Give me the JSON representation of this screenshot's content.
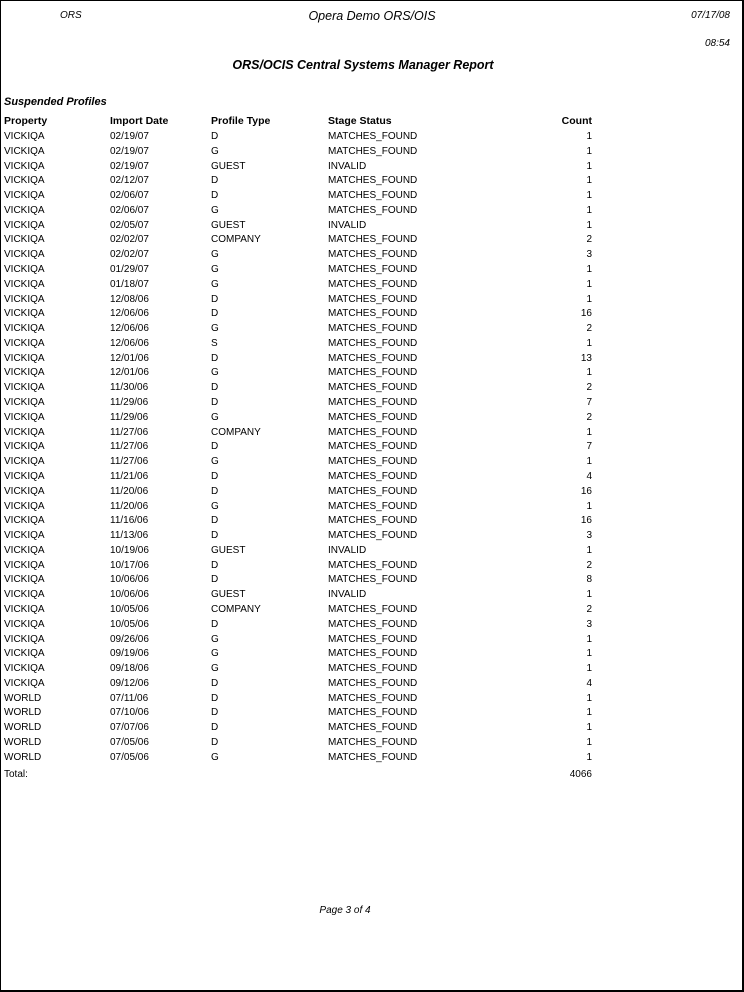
{
  "header": {
    "left": "ORS",
    "center": "Opera Demo ORS/OIS",
    "date": "07/17/08",
    "time": "08:54"
  },
  "report_title": "ORS/OCIS Central Systems Manager Report",
  "section_title": "Suspended Profiles",
  "table": {
    "columns": [
      "Property",
      "Import Date",
      "Profile Type",
      "Stage Status",
      "Count"
    ],
    "rows": [
      [
        "VICKIQA",
        "02/19/07",
        "D",
        "MATCHES_FOUND",
        "1"
      ],
      [
        "VICKIQA",
        "02/19/07",
        "G",
        "MATCHES_FOUND",
        "1"
      ],
      [
        "VICKIQA",
        "02/19/07",
        "GUEST",
        "INVALID",
        "1"
      ],
      [
        "VICKIQA",
        "02/12/07",
        "D",
        "MATCHES_FOUND",
        "1"
      ],
      [
        "VICKIQA",
        "02/06/07",
        "D",
        "MATCHES_FOUND",
        "1"
      ],
      [
        "VICKIQA",
        "02/06/07",
        "G",
        "MATCHES_FOUND",
        "1"
      ],
      [
        "VICKIQA",
        "02/05/07",
        "GUEST",
        "INVALID",
        "1"
      ],
      [
        "VICKIQA",
        "02/02/07",
        "COMPANY",
        "MATCHES_FOUND",
        "2"
      ],
      [
        "VICKIQA",
        "02/02/07",
        "G",
        "MATCHES_FOUND",
        "3"
      ],
      [
        "VICKIQA",
        "01/29/07",
        "G",
        "MATCHES_FOUND",
        "1"
      ],
      [
        "VICKIQA",
        "01/18/07",
        "G",
        "MATCHES_FOUND",
        "1"
      ],
      [
        "VICKIQA",
        "12/08/06",
        "D",
        "MATCHES_FOUND",
        "1"
      ],
      [
        "VICKIQA",
        "12/06/06",
        "D",
        "MATCHES_FOUND",
        "16"
      ],
      [
        "VICKIQA",
        "12/06/06",
        "G",
        "MATCHES_FOUND",
        "2"
      ],
      [
        "VICKIQA",
        "12/06/06",
        "S",
        "MATCHES_FOUND",
        "1"
      ],
      [
        "VICKIQA",
        "12/01/06",
        "D",
        "MATCHES_FOUND",
        "13"
      ],
      [
        "VICKIQA",
        "12/01/06",
        "G",
        "MATCHES_FOUND",
        "1"
      ],
      [
        "VICKIQA",
        "11/30/06",
        "D",
        "MATCHES_FOUND",
        "2"
      ],
      [
        "VICKIQA",
        "11/29/06",
        "D",
        "MATCHES_FOUND",
        "7"
      ],
      [
        "VICKIQA",
        "11/29/06",
        "G",
        "MATCHES_FOUND",
        "2"
      ],
      [
        "VICKIQA",
        "11/27/06",
        "COMPANY",
        "MATCHES_FOUND",
        "1"
      ],
      [
        "VICKIQA",
        "11/27/06",
        "D",
        "MATCHES_FOUND",
        "7"
      ],
      [
        "VICKIQA",
        "11/27/06",
        "G",
        "MATCHES_FOUND",
        "1"
      ],
      [
        "VICKIQA",
        "11/21/06",
        "D",
        "MATCHES_FOUND",
        "4"
      ],
      [
        "VICKIQA",
        "11/20/06",
        "D",
        "MATCHES_FOUND",
        "16"
      ],
      [
        "VICKIQA",
        "11/20/06",
        "G",
        "MATCHES_FOUND",
        "1"
      ],
      [
        "VICKIQA",
        "11/16/06",
        "D",
        "MATCHES_FOUND",
        "16"
      ],
      [
        "VICKIQA",
        "11/13/06",
        "D",
        "MATCHES_FOUND",
        "3"
      ],
      [
        "VICKIQA",
        "10/19/06",
        "GUEST",
        "INVALID",
        "1"
      ],
      [
        "VICKIQA",
        "10/17/06",
        "D",
        "MATCHES_FOUND",
        "2"
      ],
      [
        "VICKIQA",
        "10/06/06",
        "D",
        "MATCHES_FOUND",
        "8"
      ],
      [
        "VICKIQA",
        "10/06/06",
        "GUEST",
        "INVALID",
        "1"
      ],
      [
        "VICKIQA",
        "10/05/06",
        "COMPANY",
        "MATCHES_FOUND",
        "2"
      ],
      [
        "VICKIQA",
        "10/05/06",
        "D",
        "MATCHES_FOUND",
        "3"
      ],
      [
        "VICKIQA",
        "09/26/06",
        "G",
        "MATCHES_FOUND",
        "1"
      ],
      [
        "VICKIQA",
        "09/19/06",
        "G",
        "MATCHES_FOUND",
        "1"
      ],
      [
        "VICKIQA",
        "09/18/06",
        "G",
        "MATCHES_FOUND",
        "1"
      ],
      [
        "VICKIQA",
        "09/12/06",
        "D",
        "MATCHES_FOUND",
        "4"
      ],
      [
        "WORLD",
        "07/11/06",
        "D",
        "MATCHES_FOUND",
        "1"
      ],
      [
        "WORLD",
        "07/10/06",
        "D",
        "MATCHES_FOUND",
        "1"
      ],
      [
        "WORLD",
        "07/07/06",
        "D",
        "MATCHES_FOUND",
        "1"
      ],
      [
        "WORLD",
        "07/05/06",
        "D",
        "MATCHES_FOUND",
        "1"
      ],
      [
        "WORLD",
        "07/05/06",
        "G",
        "MATCHES_FOUND",
        "1"
      ]
    ],
    "total_label": "Total:",
    "total_value": "4066"
  },
  "footer": {
    "page": "Page 3 of 4"
  }
}
